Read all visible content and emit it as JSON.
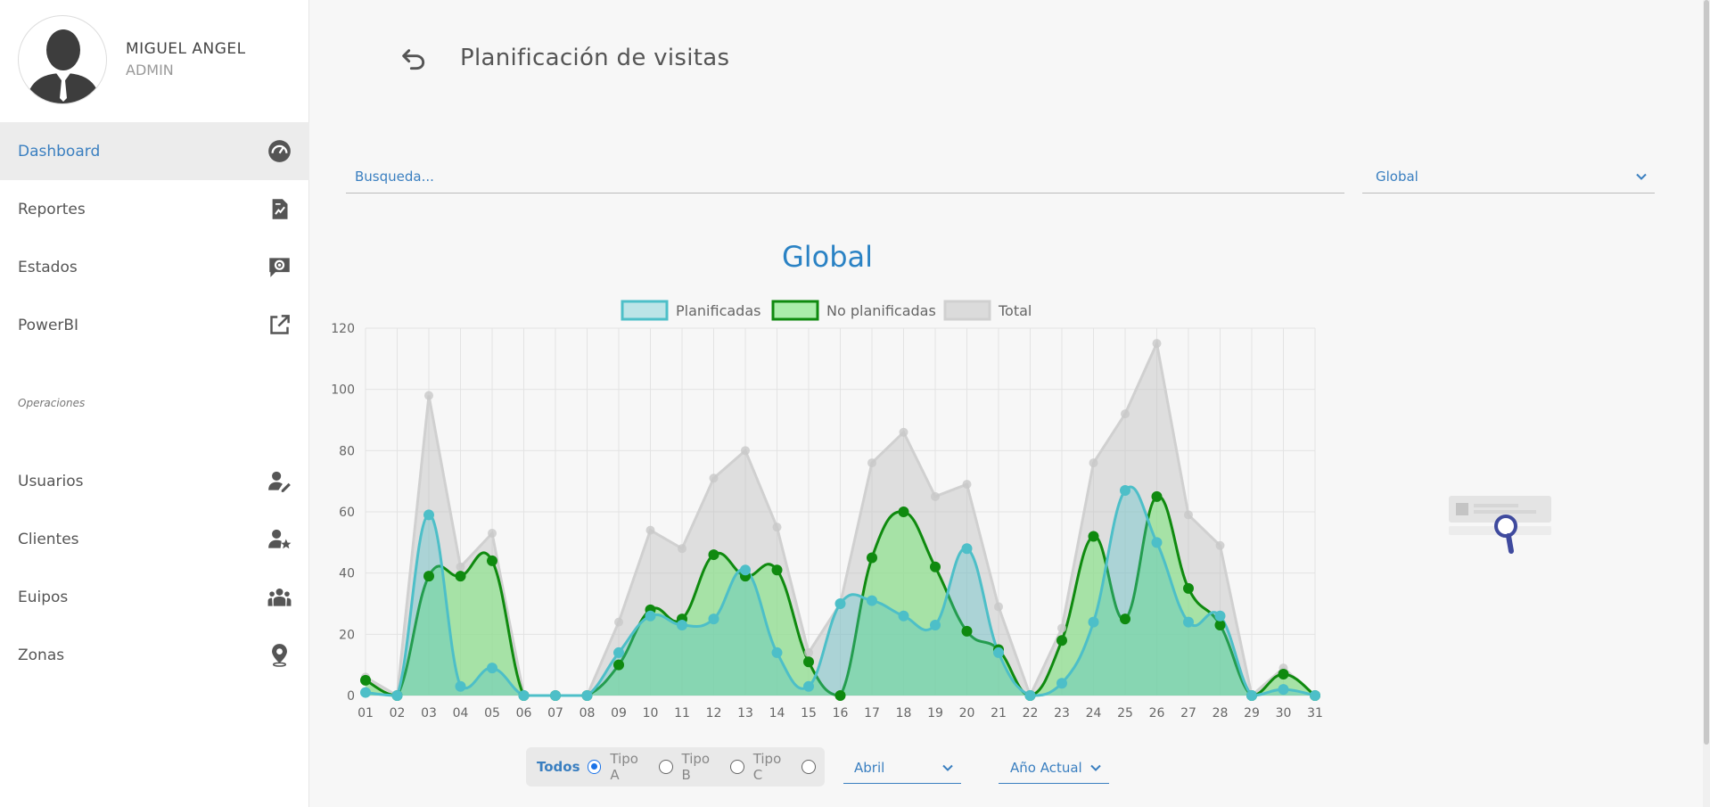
{
  "user": {
    "name": "MIGUEL ANGEL",
    "role": "ADMIN"
  },
  "sidebar": {
    "items": [
      {
        "label": "Dashboard",
        "icon": "speedometer-icon",
        "active": true
      },
      {
        "label": "Reportes",
        "icon": "report-icon"
      },
      {
        "label": "Estados",
        "icon": "settings-chat-icon"
      },
      {
        "label": "PowerBI",
        "icon": "external-link-icon"
      }
    ],
    "section_label": "Operaciones",
    "ops_items": [
      {
        "label": "Usuarios",
        "icon": "user-edit-icon"
      },
      {
        "label": "Clientes",
        "icon": "user-star-icon"
      },
      {
        "label": "Euipos",
        "icon": "team-icon"
      },
      {
        "label": "Zonas",
        "icon": "location-pin-icon"
      }
    ]
  },
  "header": {
    "title": "Planificación de visitas"
  },
  "search": {
    "placeholder": "Busqueda..."
  },
  "scope_select": {
    "value": "Global"
  },
  "filters": {
    "todos": "Todos",
    "tipo_a": "Tipo A",
    "tipo_b": "Tipo B",
    "tipo_c": "Tipo C",
    "month": "Abril",
    "year": "Año Actual"
  },
  "colors": {
    "accent": "#3a7fc0",
    "planificadas": "#4dbfc8",
    "no_planificadas": "#0f8a0f",
    "total": "#c8c8c8"
  },
  "chart_data": {
    "type": "area",
    "title": "Global",
    "categories": [
      "01",
      "02",
      "03",
      "04",
      "05",
      "06",
      "07",
      "08",
      "09",
      "10",
      "11",
      "12",
      "13",
      "14",
      "15",
      "16",
      "17",
      "18",
      "19",
      "20",
      "21",
      "22",
      "23",
      "24",
      "25",
      "26",
      "27",
      "28",
      "29",
      "30",
      "31"
    ],
    "series": [
      {
        "name": "Planificadas",
        "values": [
          1,
          0,
          59,
          3,
          9,
          0,
          0,
          0,
          14,
          26,
          23,
          25,
          41,
          14,
          3,
          30,
          31,
          26,
          23,
          48,
          14,
          0,
          4,
          24,
          67,
          50,
          24,
          26,
          0,
          2,
          0
        ]
      },
      {
        "name": "No planificadas",
        "values": [
          5,
          0,
          39,
          39,
          44,
          0,
          0,
          0,
          10,
          28,
          25,
          46,
          39,
          41,
          11,
          0,
          45,
          60,
          42,
          21,
          15,
          0,
          18,
          52,
          25,
          65,
          35,
          23,
          0,
          7,
          0
        ]
      },
      {
        "name": "Total",
        "values": [
          6,
          0,
          98,
          42,
          53,
          0,
          0,
          0,
          24,
          54,
          48,
          71,
          80,
          55,
          14,
          30,
          76,
          86,
          65,
          69,
          29,
          0,
          22,
          76,
          92,
          115,
          59,
          49,
          0,
          9,
          0
        ]
      }
    ],
    "ylim": [
      0,
      120
    ],
    "yticks": [
      0,
      20,
      40,
      60,
      80,
      100,
      120
    ],
    "legend_position": "top",
    "grid": true
  }
}
